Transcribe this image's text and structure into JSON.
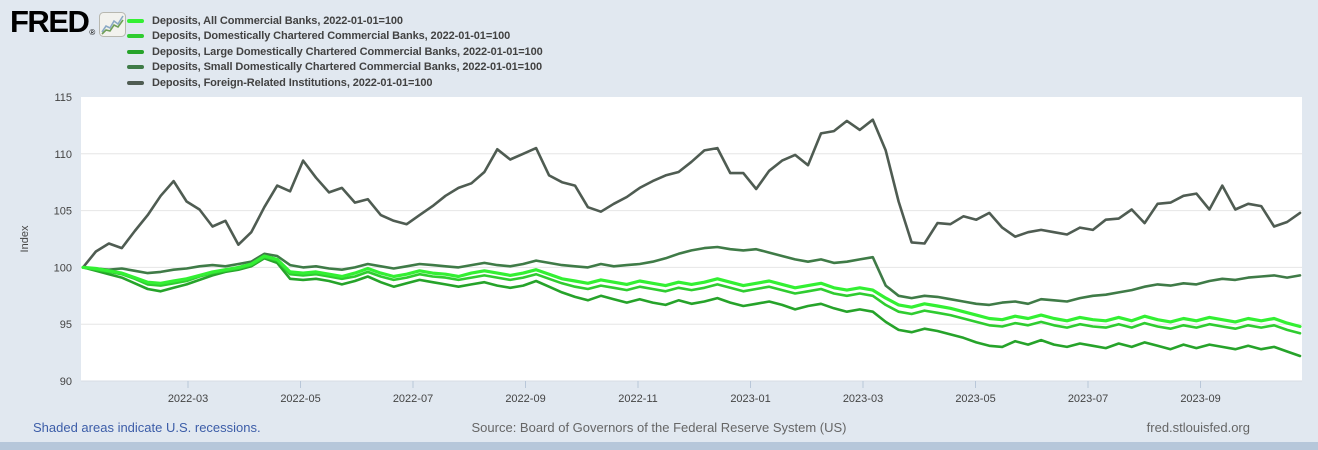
{
  "header": {
    "logo_text": "FRED",
    "logo_registered": "®"
  },
  "chart_data": {
    "type": "line",
    "title": "",
    "ylabel": "Index",
    "xlabel": "",
    "ylim": [
      90,
      115
    ],
    "yticks": [
      "90",
      "95",
      "100",
      "105",
      "110",
      "115"
    ],
    "grid": true,
    "legend_position": "top-left",
    "x_frequency": "weekly",
    "x_start_date": "2022-01-05",
    "x_end_date": "2023-10-25",
    "xticks": [
      {
        "label": "2022-03",
        "m": 2
      },
      {
        "label": "2022-05",
        "m": 4
      },
      {
        "label": "2022-07",
        "m": 6
      },
      {
        "label": "2022-09",
        "m": 8
      },
      {
        "label": "2022-11",
        "m": 10
      },
      {
        "label": "2023-01",
        "m": 12
      },
      {
        "label": "2023-03",
        "m": 14
      },
      {
        "label": "2023-05",
        "m": 16
      },
      {
        "label": "2023-07",
        "m": 18
      },
      {
        "label": "2023-09",
        "m": 20
      }
    ],
    "series": [
      {
        "short": "all",
        "name": "Deposits, All Commercial Banks, 2022-01-01=100",
        "color": "#33f033",
        "values": [
          100.0,
          99.9,
          99.7,
          99.5,
          99.1,
          98.7,
          98.6,
          98.8,
          99.0,
          99.3,
          99.6,
          99.8,
          100.0,
          100.3,
          101.0,
          100.7,
          99.6,
          99.5,
          99.6,
          99.4,
          99.2,
          99.5,
          99.9,
          99.5,
          99.2,
          99.4,
          99.7,
          99.5,
          99.4,
          99.2,
          99.5,
          99.7,
          99.5,
          99.3,
          99.5,
          99.8,
          99.4,
          99.0,
          98.8,
          98.6,
          98.9,
          98.7,
          98.5,
          98.8,
          98.6,
          98.4,
          98.7,
          98.5,
          98.7,
          99.0,
          98.7,
          98.4,
          98.6,
          98.8,
          98.5,
          98.2,
          98.4,
          98.6,
          98.2,
          98.0,
          98.2,
          98.0,
          97.3,
          96.7,
          96.5,
          96.8,
          96.6,
          96.4,
          96.1,
          95.8,
          95.5,
          95.4,
          95.7,
          95.5,
          95.8,
          95.5,
          95.3,
          95.6,
          95.4,
          95.3,
          95.6,
          95.3,
          95.7,
          95.4,
          95.2,
          95.5,
          95.3,
          95.6,
          95.4,
          95.2,
          95.5,
          95.3,
          95.5,
          95.1,
          94.8
        ]
      },
      {
        "short": "domestic",
        "name": "Deposits, Domestically Chartered Commercial Banks, 2022-01-01=100",
        "color": "#2fcc30",
        "values": [
          100.0,
          99.8,
          99.6,
          99.4,
          99.0,
          98.5,
          98.4,
          98.6,
          98.8,
          99.2,
          99.5,
          99.7,
          99.9,
          100.2,
          100.9,
          100.6,
          99.4,
          99.3,
          99.4,
          99.2,
          99.0,
          99.2,
          99.6,
          99.2,
          98.9,
          99.1,
          99.4,
          99.2,
          99.1,
          98.9,
          99.1,
          99.3,
          99.1,
          98.9,
          99.1,
          99.4,
          99.0,
          98.6,
          98.3,
          98.1,
          98.4,
          98.2,
          98.0,
          98.3,
          98.1,
          97.9,
          98.2,
          98.0,
          98.2,
          98.5,
          98.2,
          97.9,
          98.1,
          98.3,
          98.0,
          97.7,
          97.9,
          98.1,
          97.7,
          97.5,
          97.7,
          97.5,
          96.7,
          96.1,
          95.9,
          96.2,
          96.0,
          95.8,
          95.5,
          95.2,
          94.9,
          94.8,
          95.1,
          94.9,
          95.2,
          94.9,
          94.7,
          95.0,
          94.8,
          94.7,
          95.0,
          94.7,
          95.1,
          94.8,
          94.6,
          94.9,
          94.7,
          95.0,
          94.8,
          94.6,
          94.9,
          94.7,
          94.9,
          94.5,
          94.2
        ]
      },
      {
        "short": "large",
        "name": "Deposits, Large Domestically Chartered Commercial Banks, 2022-01-01=100",
        "color": "#26a32a",
        "values": [
          100.0,
          99.7,
          99.4,
          99.1,
          98.6,
          98.1,
          97.9,
          98.2,
          98.5,
          98.9,
          99.3,
          99.6,
          99.8,
          100.1,
          100.8,
          100.4,
          99.0,
          98.9,
          99.0,
          98.8,
          98.5,
          98.8,
          99.2,
          98.7,
          98.3,
          98.6,
          98.9,
          98.7,
          98.5,
          98.3,
          98.5,
          98.7,
          98.4,
          98.2,
          98.4,
          98.8,
          98.3,
          97.8,
          97.4,
          97.1,
          97.5,
          97.2,
          96.9,
          97.2,
          96.9,
          96.7,
          97.1,
          96.8,
          97.0,
          97.3,
          96.9,
          96.6,
          96.8,
          97.0,
          96.7,
          96.3,
          96.6,
          96.8,
          96.4,
          96.1,
          96.3,
          96.1,
          95.2,
          94.5,
          94.3,
          94.6,
          94.4,
          94.1,
          93.8,
          93.4,
          93.1,
          93.0,
          93.5,
          93.2,
          93.6,
          93.2,
          93.0,
          93.3,
          93.1,
          92.9,
          93.3,
          93.0,
          93.4,
          93.1,
          92.8,
          93.2,
          92.9,
          93.2,
          93.0,
          92.8,
          93.1,
          92.8,
          93.0,
          92.6,
          92.2
        ]
      },
      {
        "short": "small",
        "name": "Deposits, Small Domestically Chartered Commercial Banks, 2022-01-01=100",
        "color": "#3f7b47",
        "values": [
          100.0,
          99.9,
          99.8,
          99.9,
          99.7,
          99.5,
          99.6,
          99.8,
          99.9,
          100.1,
          100.2,
          100.1,
          100.3,
          100.5,
          101.2,
          101.0,
          100.2,
          100.0,
          100.1,
          99.9,
          99.8,
          100.0,
          100.3,
          100.1,
          99.9,
          100.1,
          100.3,
          100.2,
          100.1,
          100.0,
          100.2,
          100.4,
          100.2,
          100.1,
          100.3,
          100.6,
          100.4,
          100.2,
          100.1,
          100.0,
          100.3,
          100.1,
          100.2,
          100.3,
          100.5,
          100.8,
          101.2,
          101.5,
          101.7,
          101.8,
          101.6,
          101.5,
          101.6,
          101.3,
          101.0,
          100.7,
          100.5,
          100.7,
          100.4,
          100.5,
          100.7,
          100.9,
          98.4,
          97.5,
          97.3,
          97.5,
          97.4,
          97.2,
          97.0,
          96.8,
          96.7,
          96.9,
          97.0,
          96.8,
          97.2,
          97.1,
          97.0,
          97.3,
          97.5,
          97.6,
          97.8,
          98.0,
          98.3,
          98.5,
          98.4,
          98.6,
          98.5,
          98.8,
          99.0,
          98.9,
          99.1,
          99.2,
          99.3,
          99.1,
          99.3
        ]
      },
      {
        "short": "foreign",
        "name": "Deposits, Foreign-Related Institutions, 2022-01-01=100",
        "color": "#4f5c52",
        "values": [
          100.0,
          101.4,
          102.1,
          101.7,
          103.2,
          104.6,
          106.3,
          107.6,
          105.8,
          105.1,
          103.6,
          104.1,
          102.0,
          103.1,
          105.3,
          107.2,
          106.7,
          109.4,
          107.9,
          106.6,
          107.0,
          105.7,
          106.0,
          104.6,
          104.1,
          103.8,
          104.6,
          105.4,
          106.3,
          107.0,
          107.4,
          108.4,
          110.4,
          109.5,
          110.0,
          110.5,
          108.1,
          107.5,
          107.2,
          105.3,
          104.9,
          105.6,
          106.2,
          107.0,
          107.6,
          108.1,
          108.4,
          109.3,
          110.3,
          110.5,
          108.3,
          108.3,
          106.9,
          108.5,
          109.4,
          109.9,
          109.0,
          111.8,
          112.0,
          112.9,
          112.1,
          113.0,
          110.3,
          105.8,
          102.2,
          102.1,
          103.9,
          103.8,
          104.5,
          104.2,
          104.8,
          103.5,
          102.7,
          103.1,
          103.3,
          103.1,
          102.9,
          103.5,
          103.3,
          104.2,
          104.3,
          105.1,
          103.9,
          105.6,
          105.7,
          106.3,
          106.5,
          105.1,
          107.2,
          105.1,
          105.6,
          105.4,
          103.6,
          104.0,
          104.8
        ]
      }
    ]
  },
  "footer": {
    "recession_note": "Shaded areas indicate U.S. recessions.",
    "source": "Source: Board of Governors of the Federal Reserve System (US)",
    "site": "fred.stlouisfed.org"
  }
}
